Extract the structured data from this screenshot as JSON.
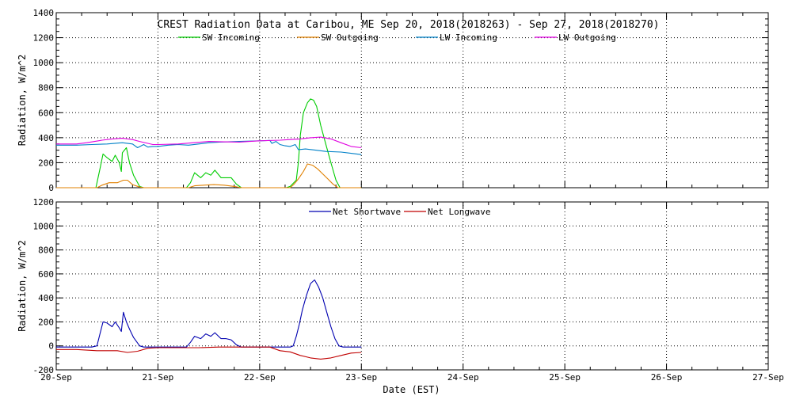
{
  "colors": {
    "sw_in": "#00cc00",
    "sw_out": "#e08000",
    "lw_in": "#0080c8",
    "lw_out": "#e000e0",
    "net_sw": "#0000b0",
    "net_lw": "#c00000",
    "grid": "#000000",
    "background": "#ffffff"
  },
  "chart_data": [
    {
      "type": "line",
      "title": "CREST Radiation Data at Caribou, ME   Sep 20, 2018(2018263) - Sep 27, 2018(2018270)",
      "ylabel": "Radiation, W/m^2",
      "xlabel": "",
      "xlim": [
        "2018-09-20",
        "2018-09-27"
      ],
      "ylim": [
        0,
        1400
      ],
      "yticks": [
        0,
        200,
        400,
        600,
        800,
        1000,
        1200,
        1400
      ],
      "xticks": [
        "20-Sep",
        "21-Sep",
        "22-Sep",
        "23-Sep",
        "24-Sep",
        "25-Sep",
        "26-Sep",
        "27-Sep"
      ],
      "grid": true,
      "legend": "top",
      "series": [
        {
          "name": "SW Incoming",
          "color_key": "sw_in",
          "points": [
            [
              0,
              0
            ],
            [
              0.39,
              0
            ],
            [
              0.43,
              150
            ],
            [
              0.46,
              270
            ],
            [
              0.5,
              240
            ],
            [
              0.55,
              210
            ],
            [
              0.58,
              260
            ],
            [
              0.62,
              200
            ],
            [
              0.64,
              130
            ],
            [
              0.65,
              280
            ],
            [
              0.69,
              320
            ],
            [
              0.72,
              200
            ],
            [
              0.76,
              100
            ],
            [
              0.82,
              10
            ],
            [
              0.86,
              0
            ],
            [
              1.28,
              0
            ],
            [
              1.32,
              40
            ],
            [
              1.36,
              120
            ],
            [
              1.42,
              80
            ],
            [
              1.47,
              120
            ],
            [
              1.52,
              100
            ],
            [
              1.56,
              140
            ],
            [
              1.62,
              80
            ],
            [
              1.67,
              80
            ],
            [
              1.72,
              80
            ],
            [
              1.77,
              30
            ],
            [
              1.82,
              0
            ],
            [
              2.26,
              0
            ],
            [
              2.3,
              10
            ],
            [
              2.36,
              60
            ],
            [
              2.38,
              200
            ],
            [
              2.4,
              420
            ],
            [
              2.43,
              600
            ],
            [
              2.47,
              680
            ],
            [
              2.5,
              710
            ],
            [
              2.53,
              700
            ],
            [
              2.56,
              650
            ],
            [
              2.6,
              500
            ],
            [
              2.65,
              350
            ],
            [
              2.7,
              200
            ],
            [
              2.75,
              60
            ],
            [
              2.79,
              0
            ],
            [
              3.0,
              0
            ]
          ]
        },
        {
          "name": "SW Outgoing",
          "color_key": "sw_out",
          "points": [
            [
              0,
              0
            ],
            [
              0.4,
              0
            ],
            [
              0.45,
              20
            ],
            [
              0.52,
              40
            ],
            [
              0.6,
              40
            ],
            [
              0.66,
              60
            ],
            [
              0.7,
              60
            ],
            [
              0.75,
              25
            ],
            [
              0.82,
              5
            ],
            [
              0.86,
              0
            ],
            [
              1.3,
              0
            ],
            [
              1.36,
              15
            ],
            [
              1.45,
              20
            ],
            [
              1.55,
              25
            ],
            [
              1.65,
              20
            ],
            [
              1.75,
              10
            ],
            [
              1.82,
              0
            ],
            [
              2.3,
              0
            ],
            [
              2.34,
              30
            ],
            [
              2.38,
              70
            ],
            [
              2.43,
              130
            ],
            [
              2.47,
              190
            ],
            [
              2.52,
              180
            ],
            [
              2.57,
              150
            ],
            [
              2.62,
              110
            ],
            [
              2.67,
              70
            ],
            [
              2.72,
              30
            ],
            [
              2.77,
              0
            ],
            [
              3.0,
              0
            ]
          ]
        },
        {
          "name": "LW Incoming",
          "color_key": "lw_in",
          "points": [
            [
              0,
              340
            ],
            [
              0.2,
              340
            ],
            [
              0.35,
              345
            ],
            [
              0.5,
              350
            ],
            [
              0.65,
              360
            ],
            [
              0.75,
              350
            ],
            [
              0.8,
              320
            ],
            [
              0.86,
              345
            ],
            [
              0.9,
              325
            ],
            [
              0.95,
              330
            ],
            [
              1.0,
              330
            ],
            [
              1.1,
              340
            ],
            [
              1.2,
              345
            ],
            [
              1.3,
              340
            ],
            [
              1.4,
              350
            ],
            [
              1.5,
              360
            ],
            [
              1.6,
              365
            ],
            [
              1.8,
              370
            ],
            [
              2.0,
              375
            ],
            [
              2.1,
              378
            ],
            [
              2.12,
              355
            ],
            [
              2.16,
              370
            ],
            [
              2.2,
              345
            ],
            [
              2.25,
              335
            ],
            [
              2.3,
              330
            ],
            [
              2.35,
              345
            ],
            [
              2.38,
              305
            ],
            [
              2.45,
              310
            ],
            [
              2.55,
              300
            ],
            [
              2.65,
              290
            ],
            [
              2.8,
              285
            ],
            [
              2.9,
              275
            ],
            [
              3.0,
              265
            ]
          ]
        },
        {
          "name": "LW Outgoing",
          "color_key": "lw_out",
          "points": [
            [
              0,
              350
            ],
            [
              0.2,
              350
            ],
            [
              0.3,
              360
            ],
            [
              0.45,
              380
            ],
            [
              0.55,
              390
            ],
            [
              0.65,
              395
            ],
            [
              0.75,
              385
            ],
            [
              0.82,
              370
            ],
            [
              0.9,
              355
            ],
            [
              0.95,
              345
            ],
            [
              1.0,
              345
            ],
            [
              1.2,
              350
            ],
            [
              1.35,
              360
            ],
            [
              1.5,
              370
            ],
            [
              1.6,
              368
            ],
            [
              1.8,
              365
            ],
            [
              1.9,
              370
            ],
            [
              2.0,
              375
            ],
            [
              2.2,
              380
            ],
            [
              2.3,
              385
            ],
            [
              2.4,
              390
            ],
            [
              2.5,
              400
            ],
            [
              2.6,
              405
            ],
            [
              2.7,
              390
            ],
            [
              2.8,
              360
            ],
            [
              2.9,
              330
            ],
            [
              3.0,
              320
            ]
          ]
        }
      ]
    },
    {
      "type": "line",
      "title": "",
      "ylabel": "Radiation, W/m^2",
      "xlabel": "Date (EST)",
      "xlim": [
        "2018-09-20",
        "2018-09-27"
      ],
      "ylim": [
        -200,
        1200
      ],
      "yticks": [
        -200,
        0,
        200,
        400,
        600,
        800,
        1000,
        1200
      ],
      "xticks": [
        "20-Sep",
        "21-Sep",
        "22-Sep",
        "23-Sep",
        "24-Sep",
        "25-Sep",
        "26-Sep",
        "27-Sep"
      ],
      "grid": true,
      "legend": "top",
      "series": [
        {
          "name": "Net Shortwave",
          "color_key": "net_sw",
          "points": [
            [
              0,
              -10
            ],
            [
              0.35,
              -10
            ],
            [
              0.4,
              0
            ],
            [
              0.43,
              100
            ],
            [
              0.46,
              200
            ],
            [
              0.5,
              190
            ],
            [
              0.55,
              160
            ],
            [
              0.58,
              200
            ],
            [
              0.62,
              150
            ],
            [
              0.64,
              120
            ],
            [
              0.66,
              280
            ],
            [
              0.69,
              200
            ],
            [
              0.72,
              140
            ],
            [
              0.76,
              70
            ],
            [
              0.82,
              0
            ],
            [
              0.86,
              -10
            ],
            [
              1.28,
              -10
            ],
            [
              1.32,
              30
            ],
            [
              1.36,
              80
            ],
            [
              1.42,
              60
            ],
            [
              1.47,
              100
            ],
            [
              1.52,
              80
            ],
            [
              1.56,
              110
            ],
            [
              1.62,
              60
            ],
            [
              1.67,
              60
            ],
            [
              1.72,
              50
            ],
            [
              1.77,
              10
            ],
            [
              1.82,
              -10
            ],
            [
              2.3,
              -10
            ],
            [
              2.33,
              0
            ],
            [
              2.36,
              80
            ],
            [
              2.39,
              180
            ],
            [
              2.42,
              300
            ],
            [
              2.46,
              420
            ],
            [
              2.5,
              520
            ],
            [
              2.54,
              550
            ],
            [
              2.58,
              490
            ],
            [
              2.62,
              400
            ],
            [
              2.66,
              280
            ],
            [
              2.7,
              160
            ],
            [
              2.74,
              60
            ],
            [
              2.78,
              0
            ],
            [
              2.82,
              -10
            ],
            [
              3.0,
              -10
            ]
          ]
        },
        {
          "name": "Net Longwave",
          "color_key": "net_lw",
          "points": [
            [
              0,
              -30
            ],
            [
              0.2,
              -30
            ],
            [
              0.4,
              -40
            ],
            [
              0.6,
              -40
            ],
            [
              0.7,
              -55
            ],
            [
              0.8,
              -45
            ],
            [
              0.9,
              -20
            ],
            [
              1.0,
              -15
            ],
            [
              1.2,
              -15
            ],
            [
              1.4,
              -15
            ],
            [
              1.6,
              -10
            ],
            [
              1.8,
              -10
            ],
            [
              2.0,
              -10
            ],
            [
              2.1,
              -10
            ],
            [
              2.2,
              -40
            ],
            [
              2.3,
              -50
            ],
            [
              2.4,
              -80
            ],
            [
              2.5,
              -100
            ],
            [
              2.6,
              -110
            ],
            [
              2.7,
              -100
            ],
            [
              2.8,
              -80
            ],
            [
              2.9,
              -60
            ],
            [
              3.0,
              -55
            ]
          ]
        }
      ]
    }
  ]
}
